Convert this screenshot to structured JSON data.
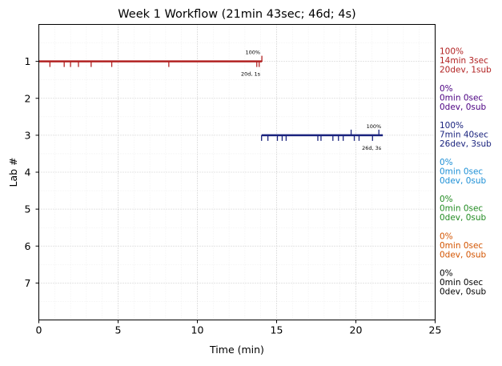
{
  "chart_data": {
    "type": "timeline",
    "title": "Week 1 Workflow (21min 43sec; 46d; 4s)",
    "xlabel": "Time (min)",
    "ylabel": "Lab #",
    "xlim": [
      0,
      25
    ],
    "ylim": [
      8,
      0
    ],
    "xticks": [
      0,
      5,
      10,
      15,
      20,
      25
    ],
    "yticks": [
      1,
      2,
      3,
      4,
      5,
      6,
      7
    ],
    "grid": true,
    "labs": [
      {
        "lab": 1,
        "color": "#b22222",
        "start": 0,
        "end": 14.07,
        "dev_events": [
          0.7,
          1.6,
          2.0,
          2.5,
          3.3,
          4.6,
          8.2,
          13.75,
          13.9
        ],
        "sub_events": [
          14.07
        ],
        "percent_label": "100%",
        "counts_label": "20d, 1s",
        "summary": [
          "100%",
          "14min 3sec",
          "20dev, 1sub"
        ]
      },
      {
        "lab": 2,
        "color": "#4b0082",
        "summary": [
          "0%",
          "0min 0sec",
          "0dev, 0sub"
        ]
      },
      {
        "lab": 3,
        "color": "#1a237e",
        "start": 14.05,
        "end": 21.7,
        "dev_events": [
          14.05,
          14.45,
          15.05,
          15.35,
          15.6,
          17.6,
          17.8,
          18.55,
          18.9,
          19.2,
          19.9,
          20.2,
          21.05
        ],
        "sub_events": [
          19.7,
          21.45
        ],
        "percent_label": "100%",
        "counts_label": "26d, 3s",
        "summary": [
          "100%",
          "7min 40sec",
          "26dev, 3sub"
        ]
      },
      {
        "lab": 4,
        "color": "#1e90d6",
        "summary": [
          "0%",
          "0min 0sec",
          "0dev, 0sub"
        ]
      },
      {
        "lab": 5,
        "color": "#228b22",
        "summary": [
          "0%",
          "0min 0sec",
          "0dev, 0sub"
        ]
      },
      {
        "lab": 6,
        "color": "#d35400",
        "summary": [
          "0%",
          "0min 0sec",
          "0dev, 0sub"
        ]
      },
      {
        "lab": 7,
        "color": "#000000",
        "summary": [
          "0%",
          "0min 0sec",
          "0dev, 0sub"
        ]
      }
    ]
  }
}
